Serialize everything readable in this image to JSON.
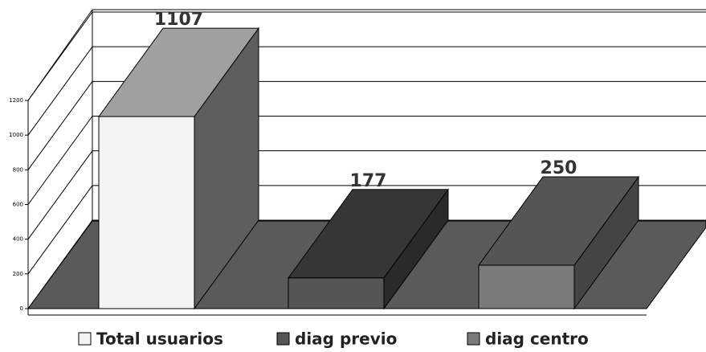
{
  "chart_data": {
    "type": "bar3d",
    "series": [
      {
        "name": "Total usuarios",
        "color": "#f4f4f4",
        "top_color": "#a0a0a0",
        "side_color": "#5e5e5e",
        "values": [
          1107
        ]
      },
      {
        "name": "diag previo",
        "color": "#555555",
        "top_color": "#363636",
        "side_color": "#2a2a2a",
        "values": [
          177
        ]
      },
      {
        "name": "diag centro",
        "color": "#7a7a7a",
        "top_color": "#555555",
        "side_color": "#444444",
        "values": [
          250
        ]
      }
    ],
    "ylim": [
      0,
      1200
    ],
    "yticks": [
      0,
      200,
      400,
      600,
      800,
      1000,
      1200
    ],
    "grid": true,
    "legend": "bottom"
  }
}
